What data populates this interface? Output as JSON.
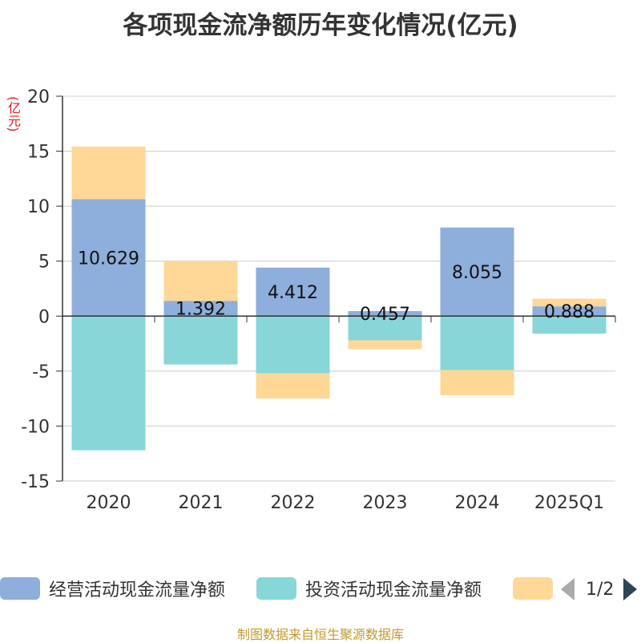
{
  "title": "各项现金流净额历年变化情况(亿元)",
  "unit_label": "(亿元)",
  "source": "制图数据来自恒生聚源数据库",
  "pager": {
    "text": "1/2"
  },
  "colors": {
    "operating": "#8eaedb",
    "investing": "#88d6d8",
    "financing": "#ffd897",
    "axis": "#333333",
    "grid": "#cccccc",
    "data_label": "#111111"
  },
  "legend": [
    {
      "label": "经营活动现金流量净额",
      "color": "#8eaedb"
    },
    {
      "label": "投资活动现金流量净额",
      "color": "#88d6d8"
    },
    {
      "label": "",
      "color": "#ffd897"
    }
  ],
  "chart_data": {
    "type": "bar",
    "stacked": true,
    "title": "各项现金流净额历年变化情况(亿元)",
    "ylabel": "(亿元)",
    "ylim": [
      -15,
      20
    ],
    "yticks": [
      20,
      15,
      10,
      5,
      0,
      -5,
      -10,
      -15
    ],
    "categories": [
      "2020",
      "2021",
      "2022",
      "2023",
      "2024",
      "2025Q1"
    ],
    "grid": true,
    "legend_position": "bottom",
    "series": [
      {
        "name": "经营活动现金流量净额",
        "values": [
          10.629,
          1.392,
          4.412,
          0.457,
          8.055,
          0.888
        ],
        "data_labels": [
          "10.629",
          "1.392",
          "4.412",
          "0.457",
          "8.055",
          "0.888"
        ]
      },
      {
        "name": "投资活动现金流量净额",
        "values": [
          -12.2,
          -4.4,
          -5.2,
          -2.2,
          -4.9,
          -1.6
        ]
      },
      {
        "values": [
          4.8,
          3.6,
          -2.3,
          -0.8,
          -2.3,
          0.7
        ]
      }
    ]
  }
}
